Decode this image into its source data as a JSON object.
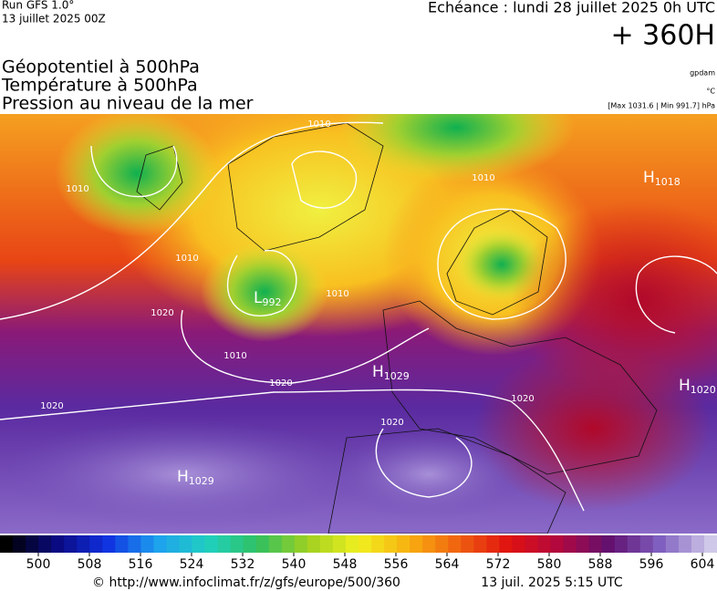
{
  "header": {
    "run": "Run GFS 1.0°",
    "date": "13 juillet 2025 00Z",
    "forecast": "Echéance : lundi 28 juillet 2025 0h UTC",
    "lead": "+ 360H"
  },
  "legend": {
    "fields": [
      "Géopotentiel à 500hPa",
      "Température à 500hPa",
      "Pression au niveau de la mer"
    ],
    "units": [
      "gpdam",
      "°C",
      "[Max 1031.6 | Min 991.7] hPa"
    ]
  },
  "map": {
    "centers": [
      {
        "letter": "H",
        "value": "1018"
      },
      {
        "letter": "L",
        "value": "992"
      },
      {
        "letter": "H",
        "value": "1029"
      },
      {
        "letter": "H",
        "value": "1029"
      },
      {
        "letter": "H",
        "value": "1020"
      }
    ],
    "isobar_labels": [
      "1010",
      "1010",
      "1010",
      "1010",
      "1010",
      "1010",
      "1020",
      "1020",
      "1020",
      "1020",
      "1020"
    ]
  },
  "colorbar": {
    "ticks": [
      500,
      508,
      516,
      524,
      532,
      540,
      548,
      556,
      564,
      572,
      580,
      588,
      596,
      604
    ],
    "colors": [
      "#000000",
      "#0a0a80",
      "#1030e0",
      "#1ea0f0",
      "#20d0c0",
      "#30c060",
      "#a0d020",
      "#f0f020",
      "#f8b010",
      "#f06010",
      "#e01010",
      "#b00840",
      "#601070",
      "#8060c0",
      "#d0c8e8"
    ]
  },
  "footer": {
    "url": "© http://www.infoclimat.fr/z/gfs/europe/500/360",
    "timestamp": "13 juil. 2025  5:15 UTC"
  }
}
